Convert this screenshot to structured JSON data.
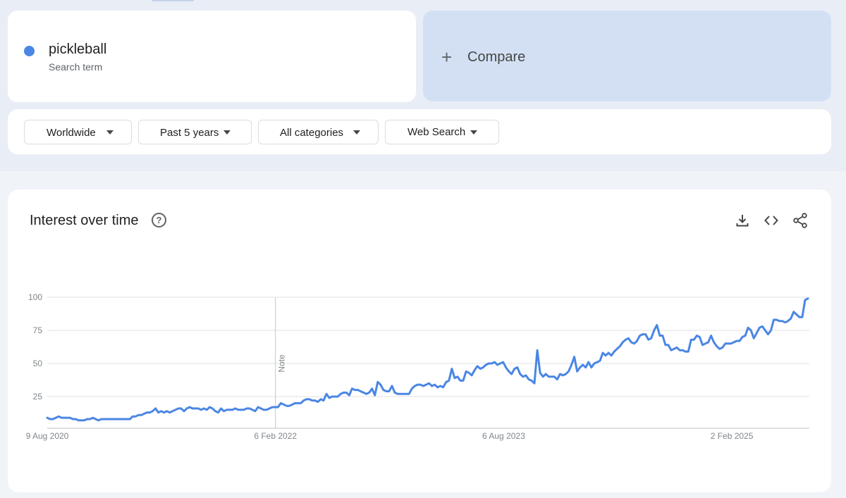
{
  "search_term": {
    "name": "pickleball",
    "subtitle": "Search term",
    "color": "#4a86e4"
  },
  "compare": {
    "plus": "+",
    "label": "Compare"
  },
  "filters": {
    "region": "Worldwide",
    "time": "Past 5 years",
    "category": "All categories",
    "property": "Web Search"
  },
  "chart_header": {
    "title": "Interest over time",
    "help": "?"
  },
  "chart_data": {
    "type": "line",
    "title": "Interest over time",
    "ylim": [
      0,
      100
    ],
    "y_ticks": [
      100,
      75,
      50,
      25
    ],
    "x_tick_labels": [
      "9 Aug 2020",
      "6 Feb 2022",
      "6 Aug 2023",
      "2 Feb 2025"
    ],
    "x_tick_dates": [
      "2020-08-09",
      "2022-02-06",
      "2023-08-06",
      "2025-02-02"
    ],
    "start_date": "2020-08-09",
    "end_date": "2025-08-03",
    "grid": true,
    "annotations": [
      {
        "label": "Note",
        "date": "2022-02-06"
      }
    ],
    "series": [
      {
        "name": "pickleball",
        "color": "#4a86e4",
        "values": [
          9,
          8,
          8,
          9,
          10,
          9,
          9,
          9,
          9,
          8,
          8,
          7,
          7,
          7,
          8,
          8,
          9,
          8,
          7,
          8,
          8,
          8,
          8,
          8,
          8,
          8,
          8,
          8,
          8,
          8,
          10,
          10,
          11,
          11,
          12,
          13,
          13,
          14,
          16,
          13,
          14,
          13,
          14,
          13,
          14,
          15,
          16,
          16,
          14,
          16,
          17,
          16,
          16,
          16,
          15,
          16,
          15,
          17,
          16,
          14,
          13,
          16,
          14,
          15,
          15,
          15,
          16,
          15,
          15,
          15,
          16,
          16,
          15,
          14,
          17,
          16,
          15,
          15,
          16,
          17,
          17,
          17,
          20,
          19,
          18,
          18,
          19,
          20,
          20,
          20,
          22,
          23,
          23,
          22,
          22,
          21,
          23,
          22,
          27,
          24,
          25,
          25,
          25,
          27,
          28,
          28,
          26,
          31,
          30,
          30,
          29,
          28,
          27,
          28,
          31,
          26,
          36,
          34,
          30,
          29,
          29,
          33,
          28,
          27,
          27,
          27,
          27,
          27,
          31,
          33,
          34,
          34,
          33,
          34,
          35,
          33,
          34,
          32,
          33,
          32,
          36,
          37,
          46,
          39,
          40,
          37,
          37,
          44,
          43,
          41,
          45,
          48,
          46,
          47,
          49,
          50,
          50,
          51,
          49,
          50,
          51,
          47,
          44,
          42,
          46,
          47,
          42,
          40,
          41,
          38,
          37,
          35,
          60,
          43,
          40,
          42,
          40,
          40,
          40,
          38,
          42,
          41,
          42,
          44,
          49,
          55,
          44,
          47,
          49,
          47,
          51,
          47,
          50,
          51,
          52,
          58,
          56,
          58,
          56,
          59,
          61,
          63,
          66,
          68,
          69,
          66,
          65,
          67,
          71,
          72,
          72,
          68,
          69,
          75,
          79,
          71,
          71,
          64,
          64,
          60,
          61,
          62,
          60,
          60,
          59,
          59,
          68,
          68,
          71,
          70,
          64,
          65,
          66,
          71,
          66,
          63,
          61,
          62,
          65,
          65,
          65,
          66,
          67,
          67,
          70,
          71,
          77,
          75,
          69,
          73,
          77,
          78,
          75,
          72,
          75,
          83,
          83,
          82,
          82,
          81,
          82,
          84,
          89,
          87,
          85,
          85,
          98,
          99
        ]
      }
    ]
  },
  "colors": {
    "accent": "#4a86e4",
    "background": "#e9eef6",
    "compare_card": "#d3e0f4",
    "grid": "#e0e0e0"
  },
  "toolbar_icons": [
    "download-icon",
    "embed-code-icon",
    "share-icon"
  ]
}
